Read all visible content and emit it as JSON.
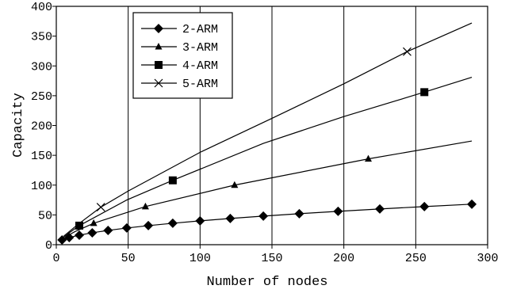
{
  "chart_data": {
    "type": "line",
    "xlabel": "Number of nodes",
    "ylabel": "Capacity",
    "xlim": [
      0,
      300
    ],
    "ylim": [
      0,
      400
    ],
    "xticks": [
      0,
      50,
      100,
      150,
      200,
      250,
      300
    ],
    "yticks": [
      0,
      50,
      100,
      150,
      200,
      250,
      300,
      350,
      400
    ],
    "grid": "vertical",
    "legend_position": "top-left",
    "series": [
      {
        "name": "2-ARM",
        "marker": "diamond",
        "points": [
          [
            4,
            8
          ],
          [
            9,
            12
          ],
          [
            16,
            16
          ],
          [
            25,
            20
          ],
          [
            36,
            24
          ],
          [
            49,
            28
          ],
          [
            64,
            32
          ],
          [
            81,
            36
          ],
          [
            100,
            40
          ],
          [
            121,
            44
          ],
          [
            144,
            48
          ],
          [
            169,
            52
          ],
          [
            196,
            56
          ],
          [
            225,
            60
          ],
          [
            256,
            64
          ],
          [
            289,
            68
          ]
        ],
        "markers": [
          [
            4,
            8
          ],
          [
            9,
            12
          ],
          [
            16,
            16
          ],
          [
            25,
            20
          ],
          [
            36,
            24
          ],
          [
            49,
            28
          ],
          [
            64,
            32
          ],
          [
            81,
            36
          ],
          [
            100,
            40
          ],
          [
            121,
            44
          ],
          [
            144,
            48
          ],
          [
            169,
            52
          ],
          [
            196,
            56
          ],
          [
            225,
            60
          ],
          [
            256,
            64
          ],
          [
            289,
            68
          ]
        ]
      },
      {
        "name": "3-ARM",
        "marker": "triangle",
        "points": [
          [
            7,
            14
          ],
          [
            13,
            22
          ],
          [
            26,
            36
          ],
          [
            62,
            64
          ],
          [
            124,
            100
          ],
          [
            217,
            144
          ],
          [
            289,
            174
          ]
        ],
        "markers": [
          [
            26,
            36
          ],
          [
            62,
            64
          ],
          [
            124,
            100
          ],
          [
            217,
            144
          ]
        ]
      },
      {
        "name": "4-ARM",
        "marker": "square",
        "points": [
          [
            4,
            10
          ],
          [
            9,
            20
          ],
          [
            16,
            32
          ],
          [
            49,
            75
          ],
          [
            81,
            108
          ],
          [
            144,
            170
          ],
          [
            200,
            215
          ],
          [
            256,
            256
          ],
          [
            289,
            281
          ]
        ],
        "markers": [
          [
            16,
            32
          ],
          [
            81,
            108
          ],
          [
            256,
            256
          ]
        ]
      },
      {
        "name": "5-ARM",
        "marker": "x",
        "points": [
          [
            5,
            14
          ],
          [
            15,
            34
          ],
          [
            31,
            63
          ],
          [
            50,
            90
          ],
          [
            100,
            155
          ],
          [
            150,
            212
          ],
          [
            200,
            270
          ],
          [
            244,
            324
          ],
          [
            289,
            372
          ]
        ],
        "markers": [
          [
            31,
            63
          ],
          [
            244,
            324
          ]
        ]
      }
    ]
  }
}
